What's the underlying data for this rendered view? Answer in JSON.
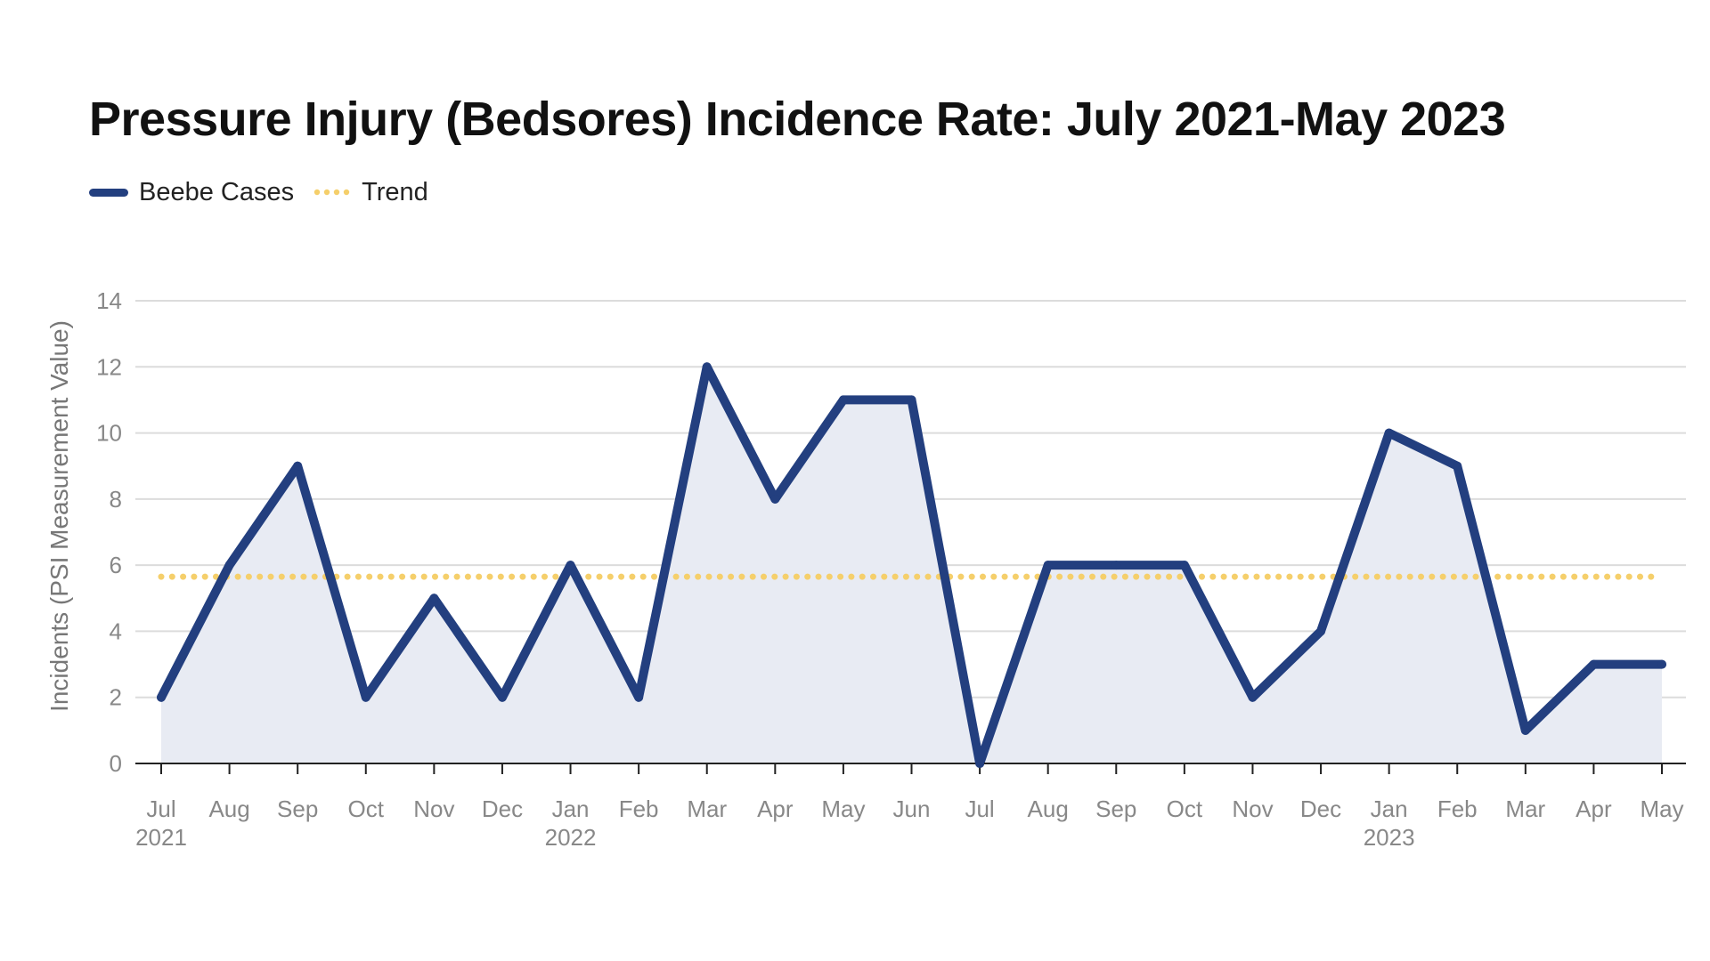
{
  "title": "Pressure Injury (Bedsores) Incidence Rate: July 2021-May 2023",
  "legend": [
    {
      "label": "Beebe Cases",
      "style": "line",
      "color": "#233f7f"
    },
    {
      "label": "Trend",
      "style": "dotted",
      "color": "#f5cf6b"
    }
  ],
  "chart_data": {
    "type": "area",
    "title": "Pressure Injury (Bedsores) Incidence Rate: July 2021-May 2023",
    "ylabel": "Incidents (PSI Measurement Value)",
    "xlabel": "",
    "ylim": [
      0,
      14
    ],
    "yticks": [
      0,
      2,
      4,
      6,
      8,
      10,
      12,
      14
    ],
    "categories": [
      "Jul",
      "Aug",
      "Sep",
      "Oct",
      "Nov",
      "Dec",
      "Jan",
      "Feb",
      "Mar",
      "Apr",
      "May",
      "Jun",
      "Jul",
      "Aug",
      "Sep",
      "Oct",
      "Nov",
      "Dec",
      "Jan",
      "Feb",
      "Mar",
      "Apr",
      "May"
    ],
    "category_years": [
      "2021",
      "",
      "",
      "",
      "",
      "",
      "2022",
      "",
      "",
      "",
      "",
      "",
      "",
      "",
      "",
      "",
      "",
      "",
      "2023",
      "",
      "",
      "",
      ""
    ],
    "series": [
      {
        "name": "Beebe Cases",
        "color": "#233f7f",
        "fill": "#e8ebf3",
        "values": [
          2,
          6,
          9,
          2,
          5,
          2,
          6,
          2,
          12,
          8,
          11,
          11,
          0,
          6,
          6,
          6,
          2,
          4,
          10,
          9,
          1,
          3,
          3
        ]
      },
      {
        "name": "Trend",
        "color": "#f5cf6b",
        "style": "dotted",
        "constant": 5.65
      }
    ],
    "grid": true,
    "legend_position": "top-left"
  }
}
